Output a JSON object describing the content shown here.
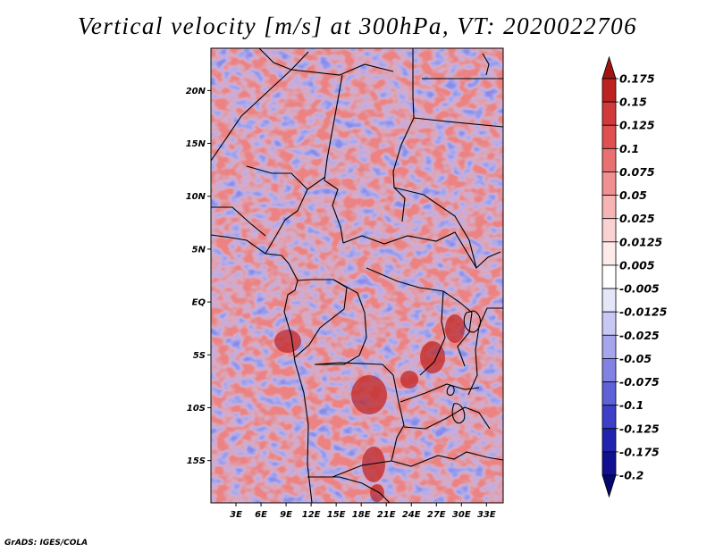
{
  "title": "Vertical velocity [m/s] at 300hPa, VT: 2020022706",
  "footer": "GrADS: IGES/COLA",
  "map": {
    "lat_labels": [
      "20N",
      "15N",
      "10N",
      "5N",
      "EQ",
      "5S",
      "10S",
      "15S"
    ],
    "lon_labels": [
      "3E",
      "6E",
      "9E",
      "12E",
      "15E",
      "18E",
      "21E",
      "24E",
      "27E",
      "30E",
      "33E"
    ],
    "lat_range": [
      -19,
      24
    ],
    "lon_range": [
      0,
      35
    ],
    "field": "vertical_velocity",
    "units": "m/s",
    "level": "300hPa",
    "valid_time": "2020022706"
  },
  "colorbar": {
    "labels": [
      "0.175",
      "0.15",
      "0.125",
      "0.1",
      "0.075",
      "0.05",
      "0.025",
      "0.0125",
      "0.005",
      "-0.005",
      "-0.0125",
      "-0.025",
      "-0.05",
      "-0.075",
      "-0.1",
      "-0.125",
      "-0.175",
      "-0.2"
    ],
    "colors": [
      "#a01414",
      "#bd2222",
      "#d23a3a",
      "#e05050",
      "#e87070",
      "#f09090",
      "#f6b4b4",
      "#fad2d2",
      "#fdeaea",
      "#ffffff",
      "#e6e6fb",
      "#c8c8f5",
      "#a6a6ee",
      "#8282e4",
      "#6060d8",
      "#3e3ec8",
      "#2222b0",
      "#101090",
      "#060670"
    ]
  }
}
